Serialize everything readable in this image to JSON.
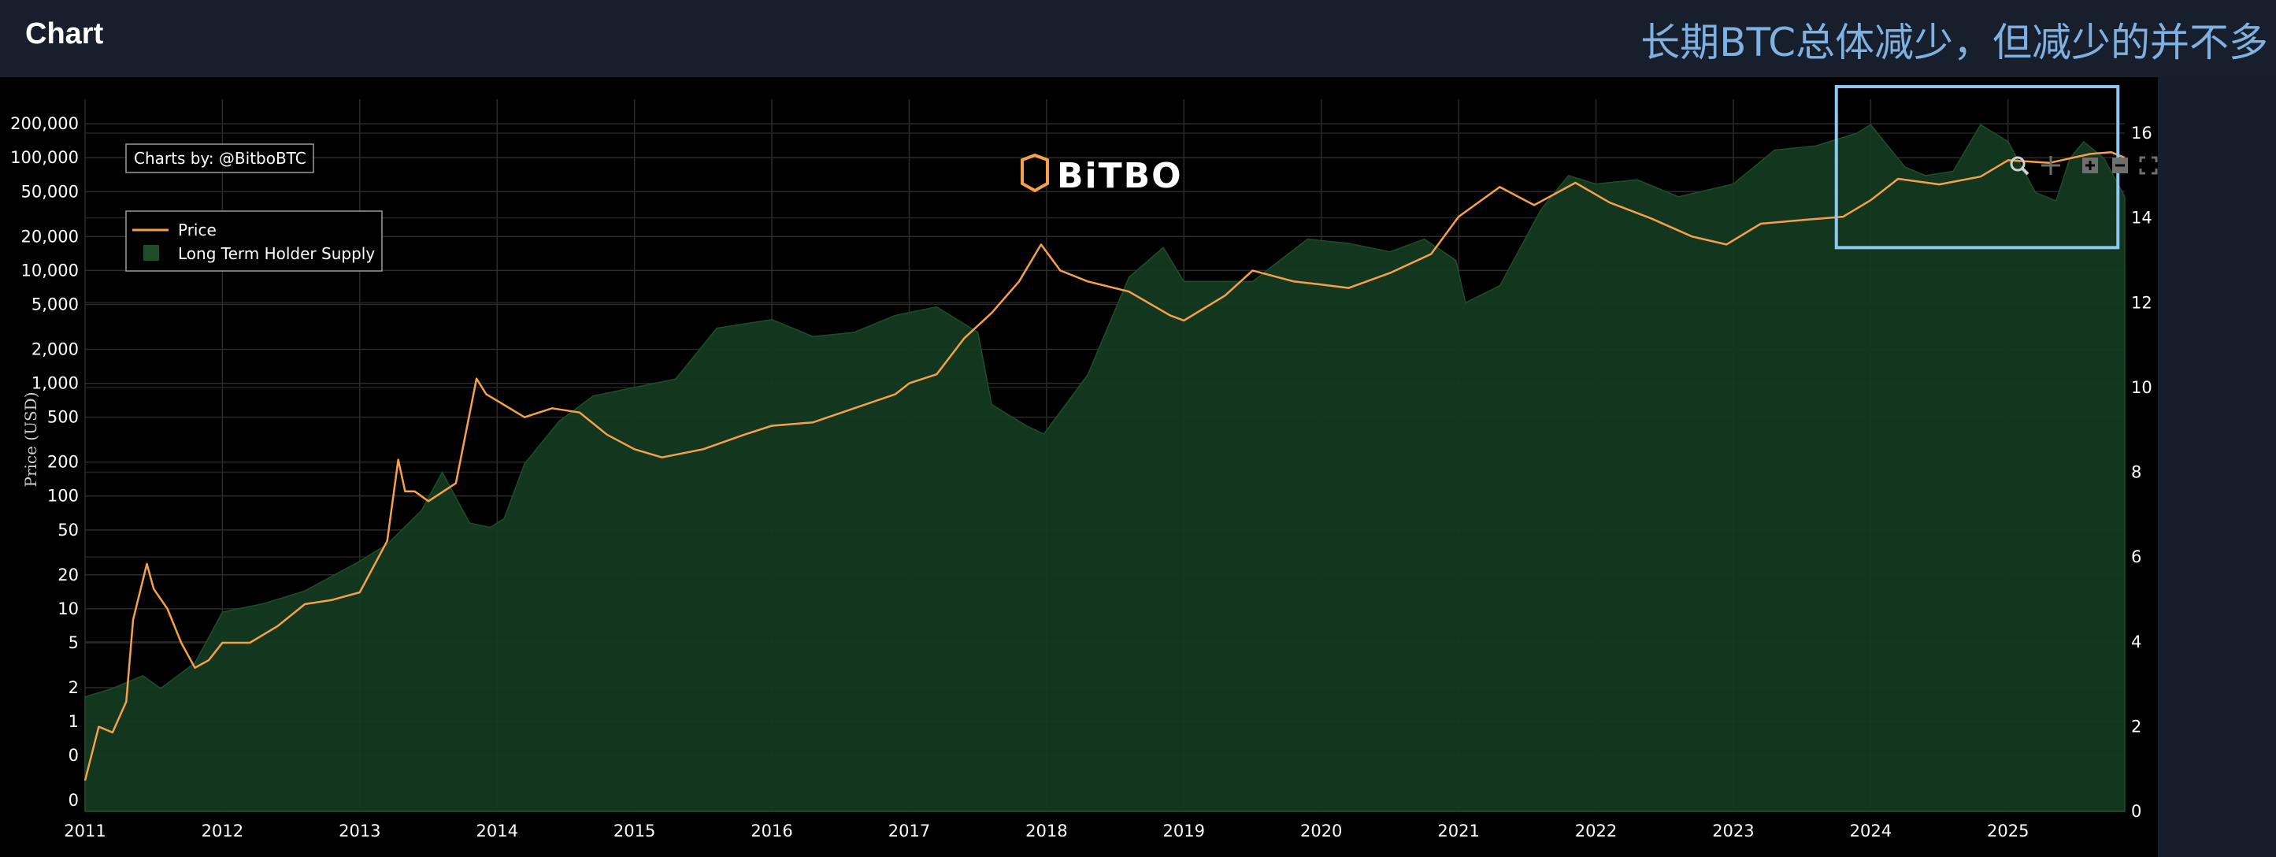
{
  "app": {
    "title": "Chart"
  },
  "annotation": {
    "text": "长期BTC总体减少，但减少的并不多"
  },
  "credit": {
    "text": "Charts by: @BitboBTC"
  },
  "logo": {
    "text": "BiTBO"
  },
  "modebar": {
    "zoom": "zoom-icon",
    "pan": "pan-icon",
    "zoom_in": "zoom-in-icon",
    "zoom_out": "zoom-out-icon",
    "autoscale": "autoscale-icon"
  },
  "colors": {
    "price": "#f5a04b",
    "supply_fill": "#143a20",
    "supply_edge": "#1e4d2b",
    "highlight_box": "#8cc8f0",
    "grid": "#2b2b2b"
  },
  "chart_data": {
    "type": "line",
    "title": "",
    "xlabel": "",
    "ylabel": "Price (USD)",
    "legend_position": "top-left",
    "legend": [
      "Price",
      "Long Term Holder Supply"
    ],
    "x_ticks": [
      "2011",
      "2012",
      "2013",
      "2014",
      "2015",
      "2016",
      "2017",
      "2018",
      "2019",
      "2020",
      "2021",
      "2022",
      "2023",
      "2024",
      "2025"
    ],
    "y_left_ticks": [
      "200,000",
      "100,000",
      "50,000",
      "20,000",
      "10,000",
      "5,000",
      "2,000",
      "1,000",
      "500",
      "200",
      "100",
      "50",
      "20",
      "10",
      "5",
      "2",
      "1",
      "0",
      "0"
    ],
    "y_left_tick_values": [
      200000,
      100000,
      50000,
      20000,
      10000,
      5000,
      2000,
      1000,
      500,
      200,
      100,
      50,
      20,
      10,
      5,
      2,
      1,
      0.5,
      0.2
    ],
    "y_left_scale": "log",
    "y_right_ticks": [
      "16",
      "14",
      "12",
      "10",
      "8",
      "6",
      "4",
      "2",
      "0"
    ],
    "y_right_range": [
      0,
      16.8
    ],
    "x_range": [
      2011.0,
      2025.85
    ],
    "series": [
      {
        "name": "Price",
        "axis": "left",
        "x": [
          2011.0,
          2011.1,
          2011.2,
          2011.3,
          2011.35,
          2011.45,
          2011.5,
          2011.6,
          2011.7,
          2011.8,
          2011.9,
          2012.0,
          2012.2,
          2012.4,
          2012.6,
          2012.8,
          2013.0,
          2013.2,
          2013.28,
          2013.33,
          2013.4,
          2013.5,
          2013.7,
          2013.85,
          2013.92,
          2014.0,
          2014.2,
          2014.4,
          2014.6,
          2014.8,
          2015.0,
          2015.2,
          2015.5,
          2015.8,
          2016.0,
          2016.3,
          2016.6,
          2016.9,
          2017.0,
          2017.2,
          2017.4,
          2017.6,
          2017.8,
          2017.96,
          2018.1,
          2018.3,
          2018.6,
          2018.9,
          2019.0,
          2019.3,
          2019.5,
          2019.8,
          2020.0,
          2020.2,
          2020.5,
          2020.8,
          2021.0,
          2021.3,
          2021.55,
          2021.85,
          2022.1,
          2022.4,
          2022.7,
          2022.95,
          2023.2,
          2023.5,
          2023.8,
          2024.0,
          2024.2,
          2024.5,
          2024.8,
          2025.0,
          2025.3,
          2025.6,
          2025.75,
          2025.85
        ],
        "values": [
          0.3,
          0.9,
          0.8,
          1.5,
          8,
          25,
          15,
          10,
          5,
          3,
          3.5,
          5,
          5,
          7,
          11,
          12,
          14,
          40,
          210,
          110,
          110,
          90,
          130,
          1100,
          800,
          700,
          500,
          600,
          550,
          350,
          260,
          220,
          260,
          350,
          420,
          450,
          600,
          800,
          1000,
          1200,
          2500,
          4200,
          8000,
          17000,
          10000,
          8000,
          6500,
          4000,
          3600,
          6000,
          10000,
          8000,
          7500,
          7000,
          9500,
          14000,
          30000,
          55000,
          38000,
          60000,
          40000,
          29000,
          20000,
          17000,
          26000,
          28000,
          30000,
          42000,
          65000,
          58000,
          68000,
          95000,
          90000,
          108000,
          112000,
          100000
        ]
      },
      {
        "name": "Long Term Holder Supply",
        "axis": "right",
        "x": [
          2011.0,
          2011.2,
          2011.42,
          2011.55,
          2011.8,
          2012.0,
          2012.3,
          2012.6,
          2013.0,
          2013.2,
          2013.45,
          2013.6,
          2013.8,
          2013.95,
          2014.05,
          2014.2,
          2014.45,
          2014.7,
          2015.0,
          2015.3,
          2015.6,
          2016.0,
          2016.3,
          2016.6,
          2016.9,
          2017.2,
          2017.5,
          2017.6,
          2017.85,
          2017.98,
          2018.3,
          2018.6,
          2018.85,
          2019.0,
          2019.5,
          2019.9,
          2020.2,
          2020.5,
          2020.75,
          2020.98,
          2021.05,
          2021.3,
          2021.6,
          2021.8,
          2022.0,
          2022.3,
          2022.6,
          2023.0,
          2023.3,
          2023.6,
          2023.9,
          2024.0,
          2024.25,
          2024.4,
          2024.6,
          2024.8,
          2025.0,
          2025.2,
          2025.35,
          2025.45,
          2025.55,
          2025.7,
          2025.85
        ],
        "values": [
          2.7,
          2.9,
          3.2,
          2.9,
          3.5,
          4.7,
          4.9,
          5.2,
          5.9,
          6.3,
          7.1,
          8.0,
          6.8,
          6.7,
          6.9,
          8.2,
          9.2,
          9.8,
          10.0,
          10.2,
          11.4,
          11.6,
          11.2,
          11.3,
          11.7,
          11.9,
          11.3,
          9.6,
          9.1,
          8.9,
          10.3,
          12.6,
          13.3,
          12.5,
          12.5,
          13.5,
          13.4,
          13.2,
          13.5,
          13.0,
          12.0,
          12.4,
          14.2,
          15.0,
          14.8,
          14.9,
          14.5,
          14.8,
          15.6,
          15.7,
          16.0,
          16.2,
          15.2,
          15.0,
          15.1,
          16.2,
          15.8,
          14.6,
          14.4,
          15.4,
          15.8,
          15.4,
          14.5
        ]
      }
    ],
    "highlight_box": {
      "x_range": [
        2023.75,
        2025.8
      ],
      "y_right_range": [
        13.3,
        17.5
      ]
    }
  }
}
